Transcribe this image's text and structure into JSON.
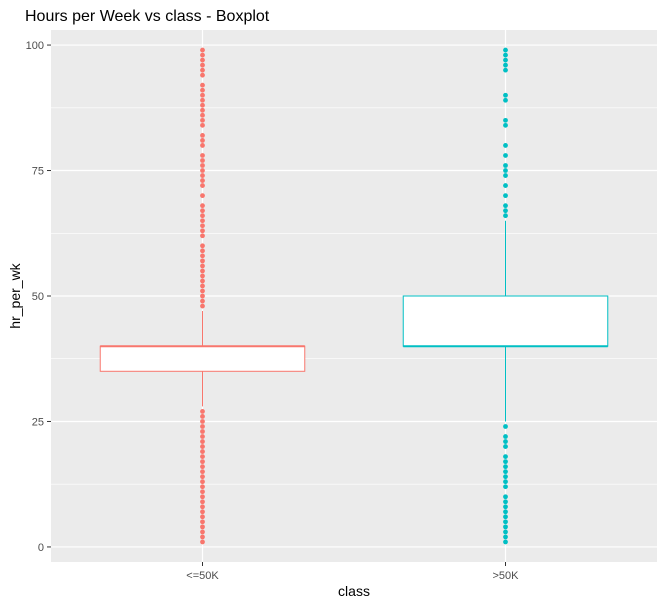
{
  "chart_data": {
    "type": "boxplot",
    "title": "Hours per Week vs class - Boxplot",
    "xlabel": "class",
    "ylabel": "hr_per_wk",
    "ylim": [
      -3,
      103
    ],
    "yticks": [
      0,
      25,
      50,
      75,
      100
    ],
    "grid": true,
    "legend": "none",
    "categories": [
      "<=50K",
      ">50K"
    ],
    "series": [
      {
        "category": "<=50K",
        "color": "#F8766D",
        "min": 28,
        "q1": 35,
        "median": 40,
        "q3": 40,
        "max": 47,
        "outliers": [
          1,
          2,
          3,
          4,
          5,
          6,
          7,
          8,
          9,
          10,
          11,
          12,
          13,
          14,
          15,
          16,
          17,
          18,
          19,
          20,
          21,
          22,
          23,
          24,
          25,
          26,
          27,
          48,
          49,
          50,
          51,
          52,
          53,
          54,
          55,
          56,
          57,
          58,
          59,
          60,
          62,
          63,
          64,
          65,
          66,
          67,
          68,
          70,
          72,
          73,
          74,
          75,
          76,
          77,
          78,
          80,
          81,
          82,
          84,
          85,
          86,
          87,
          88,
          89,
          90,
          91,
          92,
          94,
          95,
          96,
          97,
          98,
          99
        ]
      },
      {
        "category": ">50K",
        "color": "#00BFC4",
        "min": 25,
        "q1": 40,
        "median": 40,
        "q3": 50,
        "max": 65,
        "outliers": [
          1,
          2,
          3,
          4,
          5,
          6,
          7,
          8,
          9,
          10,
          12,
          13,
          14,
          15,
          16,
          17,
          18,
          20,
          21,
          22,
          24,
          66,
          67,
          68,
          70,
          72,
          74,
          75,
          76,
          78,
          80,
          84,
          85,
          89,
          90,
          95,
          96,
          97,
          98,
          99
        ]
      }
    ]
  }
}
